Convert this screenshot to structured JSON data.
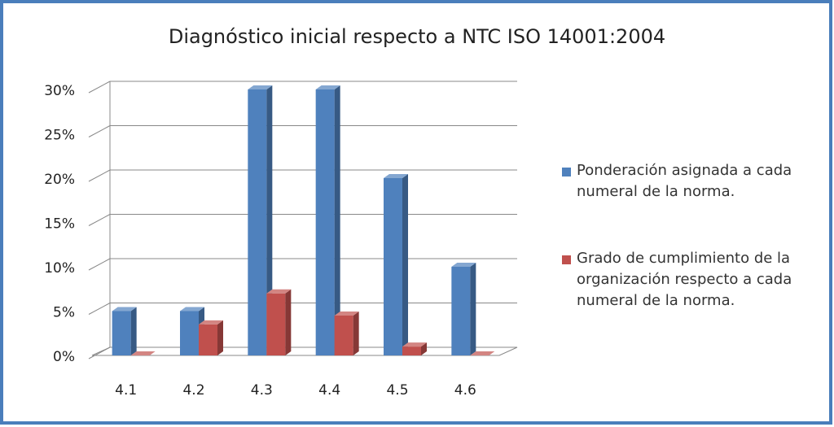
{
  "chart_data": {
    "type": "bar3d",
    "title": "Diagnóstico inicial respecto a NTC ISO 14001:2004",
    "categories": [
      "4.1",
      "4.2",
      "4.3",
      "4.4",
      "4.5",
      "4.6"
    ],
    "series": [
      {
        "name": "Ponderación asignada a cada numeral de la norma.",
        "color": "#4f81bd",
        "values": [
          5,
          5,
          30,
          30,
          20,
          10
        ]
      },
      {
        "name": "Grado de cumplimiento de la organización respecto a cada numeral de la norma.",
        "color": "#c0504d",
        "values": [
          0,
          3.5,
          7,
          4.5,
          1,
          0
        ]
      }
    ],
    "ylim": [
      0,
      30
    ],
    "yticks": [
      {
        "value": 0,
        "label": "0%"
      },
      {
        "value": 5,
        "label": "5%"
      },
      {
        "value": 10,
        "label": "10%"
      },
      {
        "value": 15,
        "label": "15%"
      },
      {
        "value": 20,
        "label": "20%"
      },
      {
        "value": 25,
        "label": "25%"
      },
      {
        "value": 30,
        "label": "30%"
      }
    ],
    "grid": true,
    "legend": "right"
  }
}
